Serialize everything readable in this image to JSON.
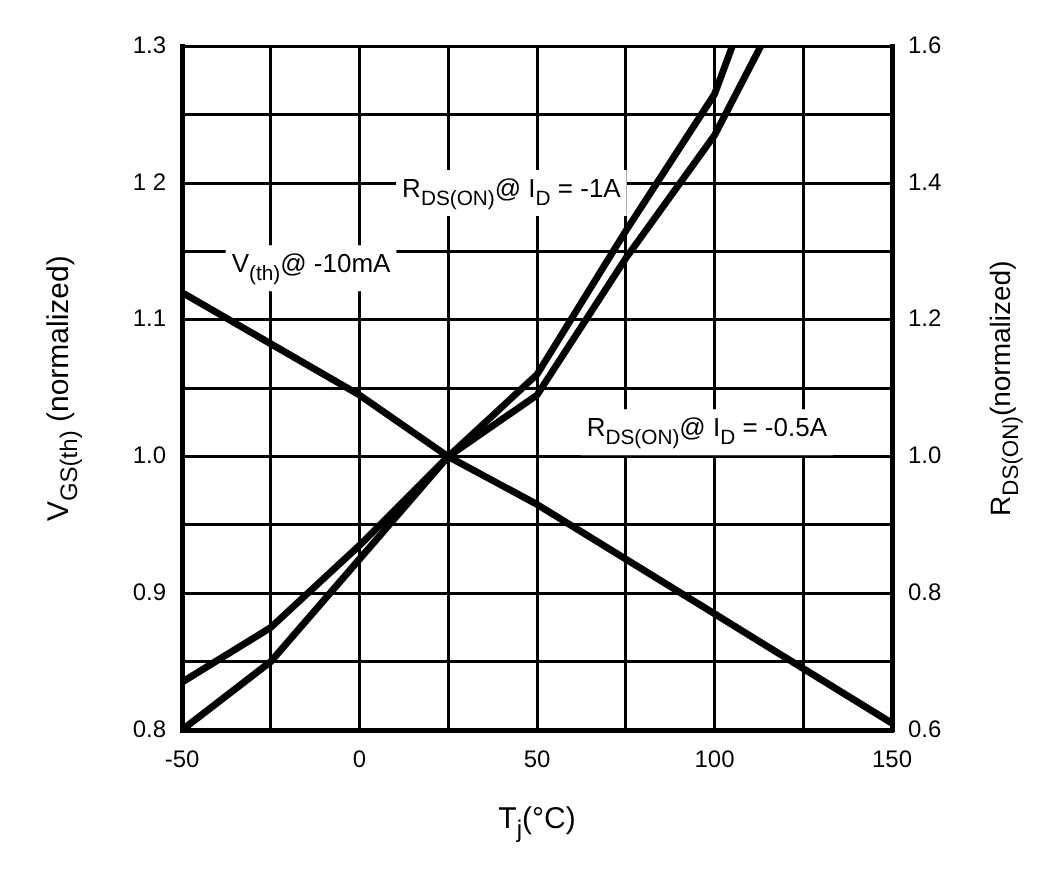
{
  "chart_data": {
    "type": "line",
    "xlabel": "T$_{j}$(°C)",
    "ylabel": "V$_{GS(th)}$ (normalized)",
    "y2label": "R$_{DS(ON)}$(normalized)",
    "xlim": [
      -50,
      150
    ],
    "xticks": [
      -50,
      {
        "value": -25,
        "label": null
      },
      0,
      {
        "value": 25,
        "label": null
      },
      50,
      {
        "value": 75,
        "label": null
      },
      100,
      {
        "value": 125,
        "label": null
      },
      150
    ],
    "ylim": [
      0.8,
      1.3
    ],
    "yticks": [
      {
        "value": 0.8,
        "label": "0.8"
      },
      {
        "value": 0.85,
        "label": null
      },
      {
        "value": 0.9,
        "label": "0.9"
      },
      {
        "value": 0.95,
        "label": null
      },
      {
        "value": 1.0,
        "label": "1.0"
      },
      {
        "value": 1.05,
        "label": null
      },
      {
        "value": 1.1,
        "label": "1.1"
      },
      {
        "value": 1.15,
        "label": null
      },
      {
        "value": 1.2,
        "label": "1 2"
      },
      {
        "value": 1.25,
        "label": null
      },
      {
        "value": 1.3,
        "label": "1.3"
      }
    ],
    "y2lim": [
      0.6,
      1.6
    ],
    "y2ticks": [
      {
        "value": 0.6,
        "label": "0.6"
      },
      {
        "value": 0.8,
        "label": "0.8"
      },
      {
        "value": 1.0,
        "label": "1.0"
      },
      {
        "value": 1.2,
        "label": "1.2"
      },
      {
        "value": 1.4,
        "label": "1.4"
      },
      {
        "value": 1.6,
        "label": "1.6"
      }
    ],
    "grid": true,
    "legend": false,
    "marker": "none",
    "line_style": "solid",
    "series": [
      {
        "name": "R$_{DS(ON)}$@ I$_{D}$ = -1A",
        "color": "#000000",
        "axis": "y2",
        "x": [
          -50,
          -25,
          0,
          25,
          50,
          75,
          100,
          105
        ],
        "values": [
          0.6,
          0.7,
          0.85,
          1.0,
          1.12,
          1.33,
          1.53,
          1.6
        ]
      },
      {
        "name": "V$_{(th)}$@ -10mA",
        "color": "#000000",
        "x": [
          -50,
          0,
          25,
          50,
          100,
          150
        ],
        "values": [
          1.12,
          1.045,
          1.0,
          0.965,
          0.885,
          0.805
        ]
      },
      {
        "name": "R$_{DS(ON)}$@ I$_{D}$ = -0.5A",
        "color": "#000000",
        "axis": "y2",
        "x": [
          -50,
          -25,
          0,
          25,
          50,
          75,
          100,
          113
        ],
        "values": [
          0.67,
          0.75,
          0.87,
          1.0,
          1.09,
          1.29,
          1.47,
          1.6
        ]
      }
    ]
  }
}
